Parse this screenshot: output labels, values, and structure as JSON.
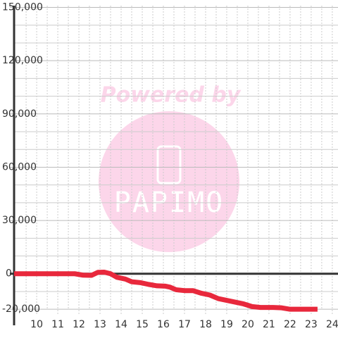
{
  "chart_data": {
    "type": "line",
    "watermark": {
      "top": "Powered by",
      "brand": "PAPIMO"
    },
    "x": [
      8.93,
      11.8,
      12.2,
      12.6,
      12.9,
      13.2,
      13.5,
      13.8,
      14.2,
      14.5,
      14.9,
      15.3,
      15.7,
      16.1,
      16.3,
      16.6,
      17.0,
      17.4,
      17.8,
      18.2,
      18.6,
      19.0,
      19.4,
      19.8,
      20.2,
      20.6,
      21.2,
      21.6,
      22.0,
      22.6,
      23.3
    ],
    "series": [
      {
        "color": "#e8283c",
        "values": [
          0,
          0,
          -800,
          -900,
          800,
          900,
          0,
          -2000,
          -3000,
          -4500,
          -5000,
          -6000,
          -6800,
          -7000,
          -7500,
          -9000,
          -9500,
          -9500,
          -11000,
          -12000,
          -14000,
          -15000,
          -16000,
          -17000,
          -18500,
          -19000,
          -19000,
          -19200,
          -20000,
          -20000,
          -20000
        ]
      }
    ],
    "xlim": [
      8.93,
      24.27
    ],
    "ylim": [
      -23500,
      151000
    ],
    "xticks": [
      10,
      11,
      12,
      13,
      14,
      15,
      16,
      17,
      18,
      19,
      20,
      21,
      22,
      23,
      24
    ],
    "yticks": [
      {
        "value": -20000,
        "label": "-20,000"
      },
      0,
      {
        "value": 30000,
        "label": "30,000"
      },
      {
        "value": 60000,
        "label": "60,000"
      },
      {
        "value": 90000,
        "label": "90,000"
      },
      {
        "value": 120000,
        "label": "120,000"
      },
      {
        "value": 150000,
        "label": "150,000"
      }
    ],
    "ygrid": [
      -10000,
      10000,
      20000,
      40000,
      50000,
      70000,
      80000,
      100000,
      110000,
      130000,
      140000
    ],
    "xgrid": [
      9.5,
      10.5,
      11.5,
      12.5,
      13.5,
      14.5,
      15.5,
      16.5,
      17.5,
      18.5,
      19.5,
      20.5,
      21.5,
      22.5,
      23.5
    ],
    "grid": true
  }
}
